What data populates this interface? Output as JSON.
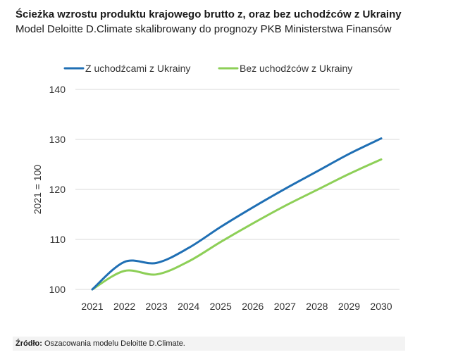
{
  "header": {
    "title": "Ścieżka wzrostu produktu krajowego brutto z, oraz bez uchodźców z Ukrainy",
    "subtitle": "Model Deloitte D.Climate skalibrowany do prognozy PKB Ministerstwa Finansów"
  },
  "source": {
    "label": "Źródło:",
    "text": " Oszacowania modelu Deloitte D.Climate."
  },
  "colors": {
    "series1": "#1f6fb4",
    "series2": "#8dcf57",
    "grid": "#d9d9d9",
    "axis_text": "#333333"
  },
  "chart_data": {
    "type": "line",
    "ylabel": "2021 = 100",
    "xlabel": "",
    "ylim": [
      100,
      140
    ],
    "yticks": [
      100,
      110,
      120,
      130,
      140
    ],
    "x": [
      "2021",
      "2022",
      "2023",
      "2024",
      "2025",
      "2026",
      "2027",
      "2028",
      "2029",
      "2030"
    ],
    "grid": true,
    "legend_position": "top",
    "series": [
      {
        "name": "Z uchodźcami z Ukrainy",
        "values": [
          100,
          105.5,
          105.3,
          108.3,
          112.5,
          116.4,
          120.1,
          123.6,
          127.1,
          130.2
        ]
      },
      {
        "name": "Bez uchodźców z Ukrainy",
        "values": [
          100,
          103.7,
          103.0,
          105.6,
          109.5,
          113.2,
          116.7,
          119.9,
          123.1,
          126.0
        ]
      }
    ]
  }
}
